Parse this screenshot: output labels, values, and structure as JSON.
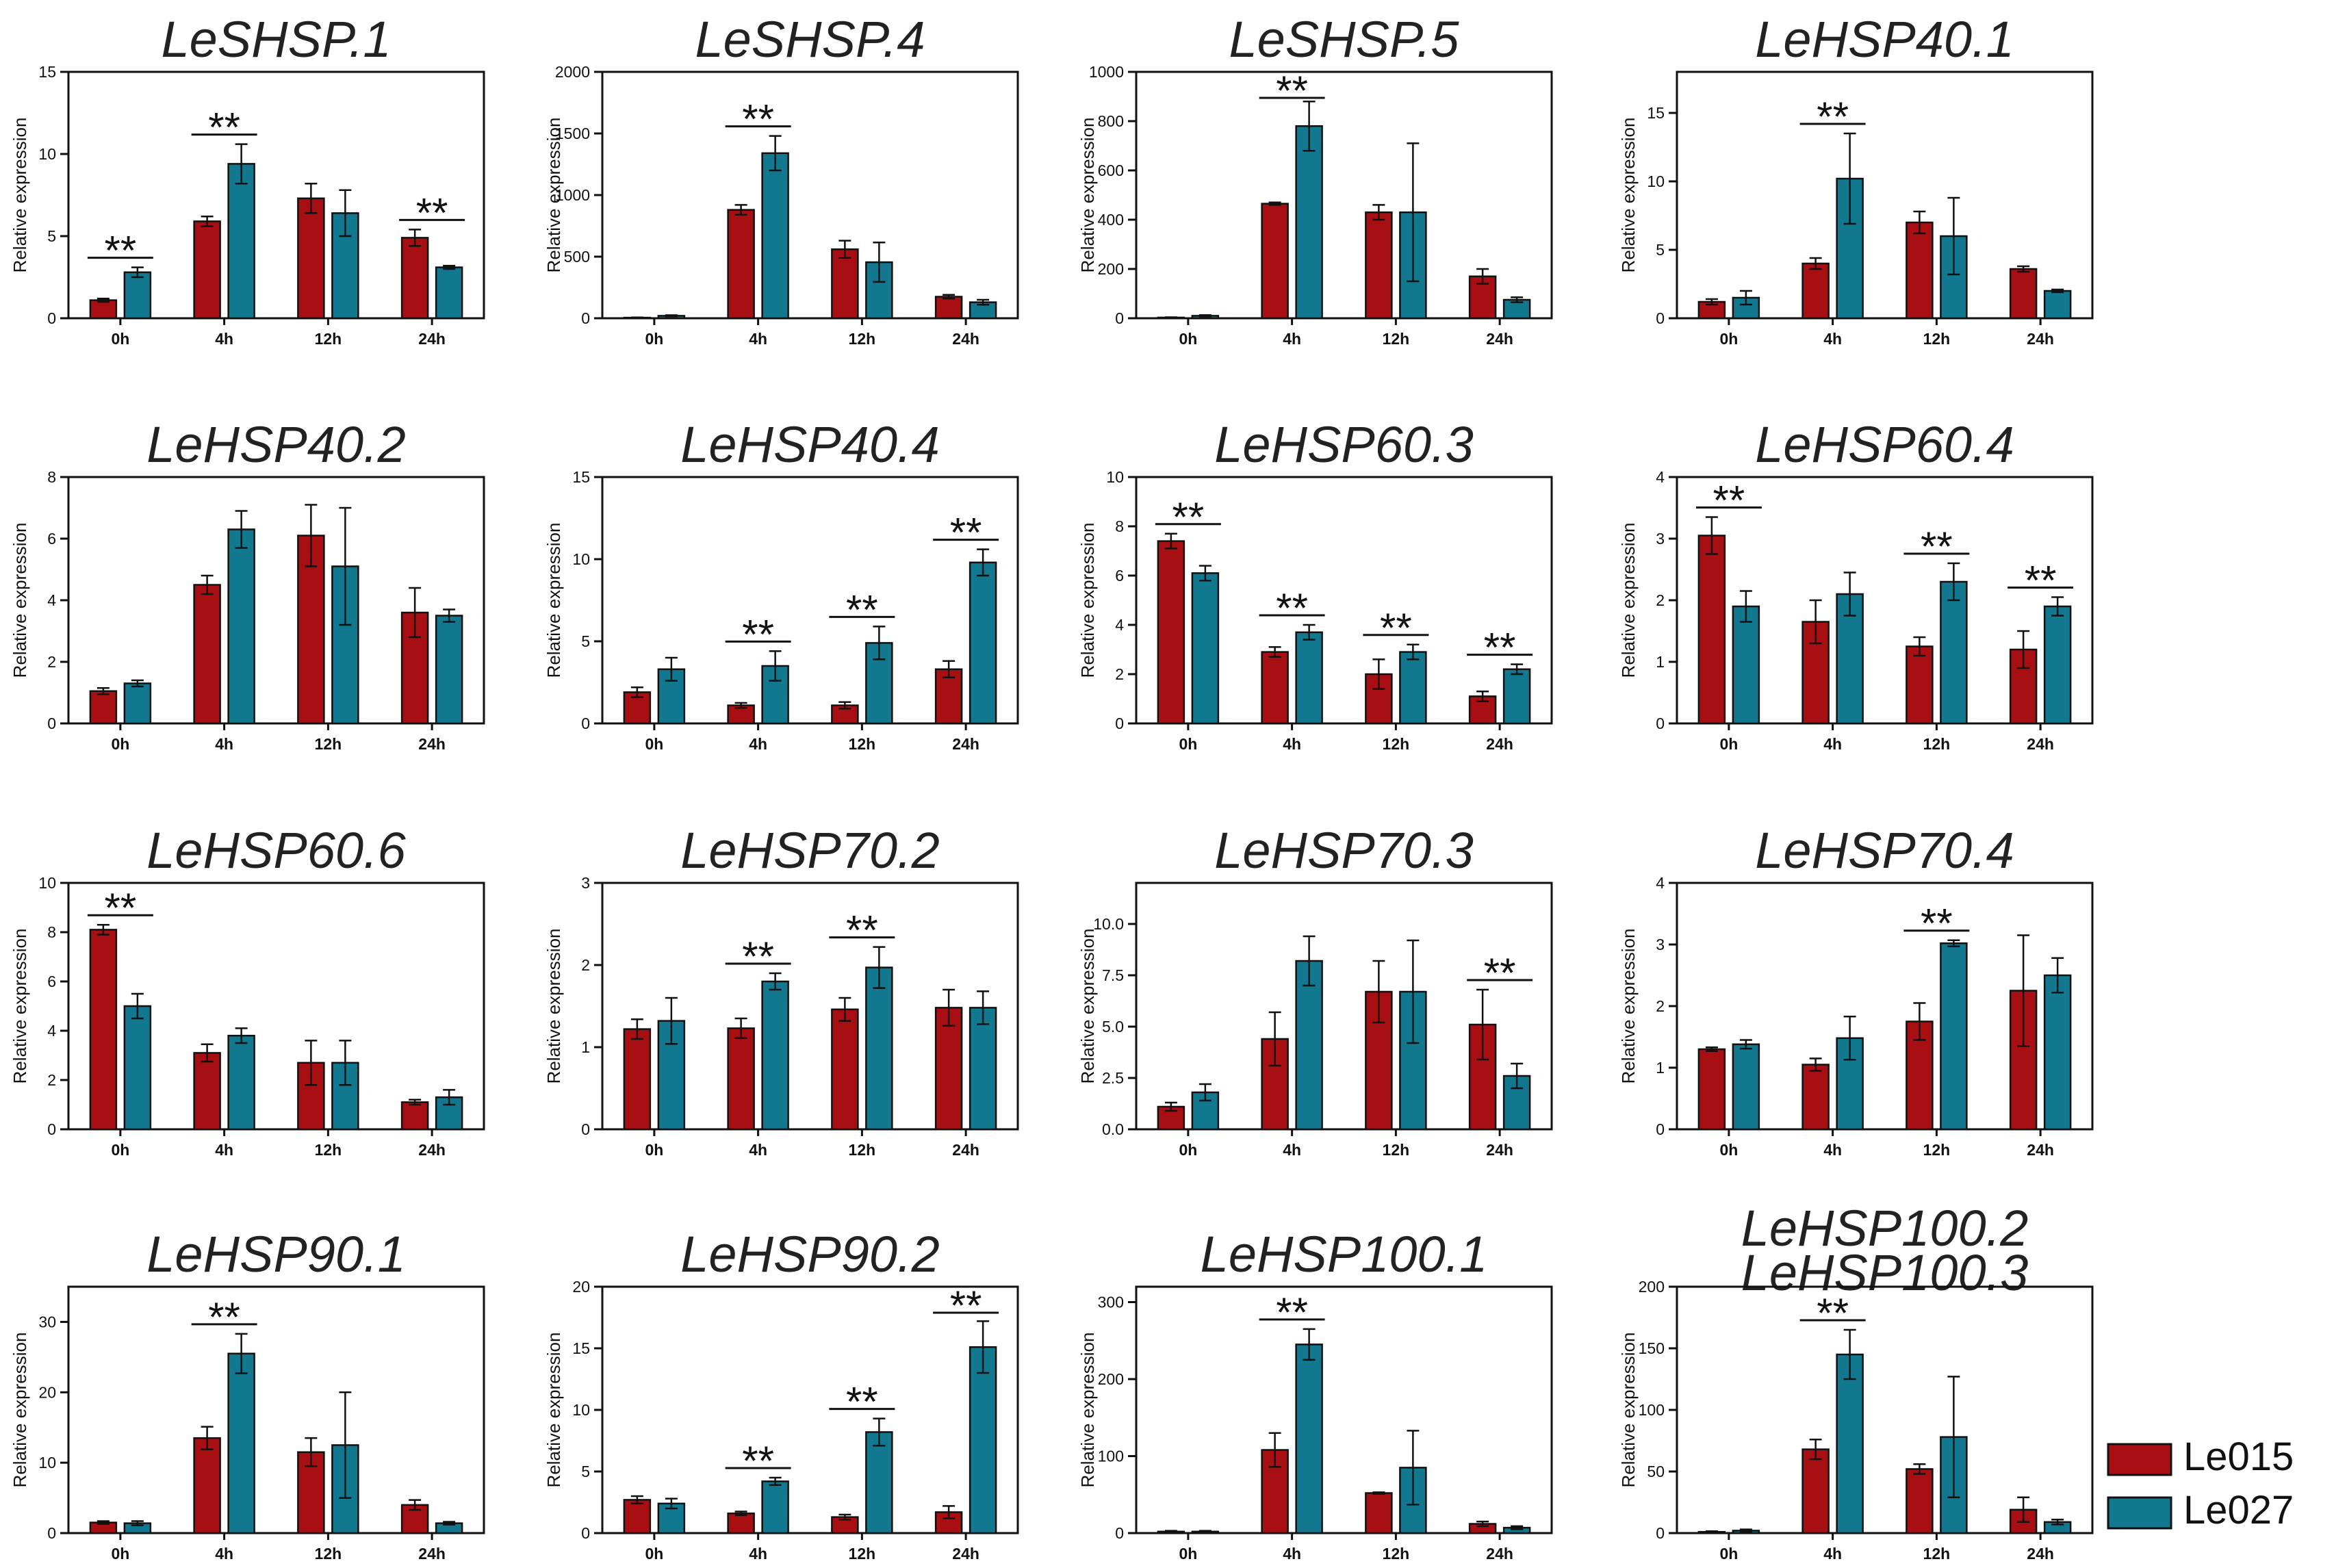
{
  "figure": {
    "legend": [
      {
        "name": "Le015",
        "color": "#a80f12"
      },
      {
        "name": "Le027",
        "color": "#11788f"
      }
    ],
    "ylabel": "Relative expression",
    "categories": [
      "0h",
      "4h",
      "12h",
      "24h"
    ]
  },
  "chart_data": [
    {
      "type": "bar",
      "title": "LeSHSP.1",
      "ylabel": "Relative expression",
      "categories": [
        "0h",
        "4h",
        "12h",
        "24h"
      ],
      "ylim": [
        0,
        15
      ],
      "yticks": [
        0,
        5,
        10,
        15
      ],
      "yticklabels": [
        "0",
        "5",
        "10",
        "15"
      ],
      "series": [
        {
          "name": "Le015",
          "values": [
            1.1,
            5.9,
            7.3,
            4.9
          ],
          "errors": [
            0.1,
            0.3,
            0.9,
            0.5
          ]
        },
        {
          "name": "Le027",
          "values": [
            2.8,
            9.4,
            6.4,
            3.1
          ],
          "errors": [
            0.3,
            1.2,
            1.4,
            0.1
          ]
        }
      ],
      "significance": [
        {
          "category": "0h",
          "label": "**"
        },
        {
          "category": "4h",
          "label": "**"
        },
        {
          "category": "24h",
          "label": "**"
        }
      ]
    },
    {
      "type": "bar",
      "title": "LeSHSP.4",
      "ylabel": "Relative expression",
      "categories": [
        "0h",
        "4h",
        "12h",
        "24h"
      ],
      "ylim": [
        0,
        2000
      ],
      "yticks": [
        0,
        500,
        1000,
        1500,
        2000
      ],
      "yticklabels": [
        "0",
        "500",
        "1000",
        "1500",
        "2000"
      ],
      "series": [
        {
          "name": "Le015",
          "values": [
            5,
            880,
            560,
            175
          ],
          "errors": [
            2,
            40,
            70,
            15
          ]
        },
        {
          "name": "Le027",
          "values": [
            20,
            1340,
            455,
            130
          ],
          "errors": [
            5,
            140,
            160,
            20
          ]
        }
      ],
      "significance": [
        {
          "category": "4h",
          "label": "**"
        }
      ]
    },
    {
      "type": "bar",
      "title": "LeSHSP.5",
      "ylabel": "Relative expression",
      "categories": [
        "0h",
        "4h",
        "12h",
        "24h"
      ],
      "ylim": [
        0,
        1000
      ],
      "yticks": [
        0,
        200,
        400,
        600,
        800,
        1000
      ],
      "yticklabels": [
        "0",
        "200",
        "400",
        "600",
        "800",
        "1000"
      ],
      "series": [
        {
          "name": "Le015",
          "values": [
            3,
            465,
            430,
            170
          ],
          "errors": [
            1,
            5,
            30,
            30
          ]
        },
        {
          "name": "Le027",
          "values": [
            10,
            780,
            430,
            75
          ],
          "errors": [
            3,
            100,
            280,
            10
          ]
        }
      ],
      "significance": [
        {
          "category": "4h",
          "label": "**"
        }
      ]
    },
    {
      "type": "bar",
      "title": "LeHSP40.1",
      "ylabel": "Relative expression",
      "categories": [
        "0h",
        "4h",
        "12h",
        "24h"
      ],
      "ylim": [
        0,
        18
      ],
      "yticks": [
        0,
        5,
        10,
        15
      ],
      "yticklabels": [
        "0",
        "5",
        "10",
        "15"
      ],
      "series": [
        {
          "name": "Le015",
          "values": [
            1.2,
            4.0,
            7.0,
            3.6
          ],
          "errors": [
            0.2,
            0.4,
            0.8,
            0.2
          ]
        },
        {
          "name": "Le027",
          "values": [
            1.5,
            10.2,
            6.0,
            2.0
          ],
          "errors": [
            0.5,
            3.3,
            2.8,
            0.1
          ]
        }
      ],
      "significance": [
        {
          "category": "4h",
          "label": "**"
        }
      ]
    },
    {
      "type": "bar",
      "title": "LeHSP40.2",
      "ylabel": "Relative expression",
      "categories": [
        "0h",
        "4h",
        "12h",
        "24h"
      ],
      "ylim": [
        0,
        8
      ],
      "yticks": [
        0,
        2,
        4,
        6,
        8
      ],
      "yticklabels": [
        "0",
        "2",
        "4",
        "6",
        "8"
      ],
      "series": [
        {
          "name": "Le015",
          "values": [
            1.05,
            4.5,
            6.1,
            3.6
          ],
          "errors": [
            0.1,
            0.3,
            1.0,
            0.8
          ]
        },
        {
          "name": "Le027",
          "values": [
            1.3,
            6.3,
            5.1,
            3.5
          ],
          "errors": [
            0.1,
            0.6,
            1.9,
            0.2
          ]
        }
      ],
      "significance": []
    },
    {
      "type": "bar",
      "title": "LeHSP40.4",
      "ylabel": "Relative expression",
      "categories": [
        "0h",
        "4h",
        "12h",
        "24h"
      ],
      "ylim": [
        0,
        15
      ],
      "yticks": [
        0,
        5,
        10,
        15
      ],
      "yticklabels": [
        "0",
        "5",
        "10",
        "15"
      ],
      "series": [
        {
          "name": "Le015",
          "values": [
            1.9,
            1.1,
            1.1,
            3.3
          ],
          "errors": [
            0.3,
            0.15,
            0.2,
            0.5
          ]
        },
        {
          "name": "Le027",
          "values": [
            3.3,
            3.5,
            4.9,
            9.8
          ],
          "errors": [
            0.7,
            0.9,
            1.0,
            0.8
          ]
        }
      ],
      "significance": [
        {
          "category": "4h",
          "label": "**"
        },
        {
          "category": "12h",
          "label": "**"
        },
        {
          "category": "24h",
          "label": "**"
        }
      ]
    },
    {
      "type": "bar",
      "title": "LeHSP60.3",
      "ylabel": "Relative expression",
      "categories": [
        "0h",
        "4h",
        "12h",
        "24h"
      ],
      "ylim": [
        0,
        10
      ],
      "yticks": [
        0,
        2,
        4,
        6,
        8,
        10
      ],
      "yticklabels": [
        "0",
        "2",
        "4",
        "6",
        "8",
        "10"
      ],
      "series": [
        {
          "name": "Le015",
          "values": [
            7.4,
            2.9,
            2.0,
            1.1
          ],
          "errors": [
            0.3,
            0.2,
            0.6,
            0.2
          ]
        },
        {
          "name": "Le027",
          "values": [
            6.1,
            3.7,
            2.9,
            2.2
          ],
          "errors": [
            0.3,
            0.3,
            0.3,
            0.2
          ]
        }
      ],
      "significance": [
        {
          "category": "0h",
          "label": "**"
        },
        {
          "category": "4h",
          "label": "**"
        },
        {
          "category": "12h",
          "label": "**"
        },
        {
          "category": "24h",
          "label": "**"
        }
      ]
    },
    {
      "type": "bar",
      "title": "LeHSP60.4",
      "ylabel": "Relative expression",
      "categories": [
        "0h",
        "4h",
        "12h",
        "24h"
      ],
      "ylim": [
        0,
        4
      ],
      "yticks": [
        0,
        1,
        2,
        3,
        4
      ],
      "yticklabels": [
        "0",
        "1",
        "2",
        "3",
        "4"
      ],
      "series": [
        {
          "name": "Le015",
          "values": [
            3.05,
            1.65,
            1.25,
            1.2
          ],
          "errors": [
            0.3,
            0.35,
            0.15,
            0.3
          ]
        },
        {
          "name": "Le027",
          "values": [
            1.9,
            2.1,
            2.3,
            1.9
          ],
          "errors": [
            0.25,
            0.35,
            0.3,
            0.15
          ]
        }
      ],
      "significance": [
        {
          "category": "0h",
          "label": "**"
        },
        {
          "category": "12h",
          "label": "**"
        },
        {
          "category": "24h",
          "label": "**"
        }
      ]
    },
    {
      "type": "bar",
      "title": "LeHSP60.6",
      "ylabel": "Relative expression",
      "categories": [
        "0h",
        "4h",
        "12h",
        "24h"
      ],
      "ylim": [
        0,
        10
      ],
      "yticks": [
        0,
        2,
        4,
        6,
        8,
        10
      ],
      "yticklabels": [
        "0",
        "2",
        "4",
        "6",
        "8",
        "10"
      ],
      "series": [
        {
          "name": "Le015",
          "values": [
            8.1,
            3.1,
            2.7,
            1.1
          ],
          "errors": [
            0.2,
            0.35,
            0.9,
            0.1
          ]
        },
        {
          "name": "Le027",
          "values": [
            5.0,
            3.8,
            2.7,
            1.3
          ],
          "errors": [
            0.5,
            0.3,
            0.9,
            0.3
          ]
        }
      ],
      "significance": [
        {
          "category": "0h",
          "label": "**"
        }
      ]
    },
    {
      "type": "bar",
      "title": "LeHSP70.2",
      "ylabel": "Relative expression",
      "categories": [
        "0h",
        "4h",
        "12h",
        "24h"
      ],
      "ylim": [
        0,
        3
      ],
      "yticks": [
        0,
        1,
        2,
        3
      ],
      "yticklabels": [
        "0",
        "1",
        "2",
        "3"
      ],
      "series": [
        {
          "name": "Le015",
          "values": [
            1.22,
            1.23,
            1.46,
            1.48
          ],
          "errors": [
            0.12,
            0.12,
            0.14,
            0.22
          ]
        },
        {
          "name": "Le027",
          "values": [
            1.32,
            1.8,
            1.97,
            1.48
          ],
          "errors": [
            0.28,
            0.1,
            0.25,
            0.2
          ]
        }
      ],
      "significance": [
        {
          "category": "4h",
          "label": "**"
        },
        {
          "category": "12h",
          "label": "**"
        }
      ]
    },
    {
      "type": "bar",
      "title": "LeHSP70.3",
      "ylabel": "Relative expression",
      "categories": [
        "0h",
        "4h",
        "12h",
        "24h"
      ],
      "ylim": [
        0,
        12
      ],
      "yticks": [
        0,
        2.5,
        5,
        7.5,
        10
      ],
      "yticklabels": [
        "0.0",
        "2.5",
        "5.0",
        "7.5",
        "10.0"
      ],
      "series": [
        {
          "name": "Le015",
          "values": [
            1.1,
            4.4,
            6.7,
            5.1
          ],
          "errors": [
            0.2,
            1.3,
            1.5,
            1.7
          ]
        },
        {
          "name": "Le027",
          "values": [
            1.8,
            8.2,
            6.7,
            2.6
          ],
          "errors": [
            0.4,
            1.2,
            2.5,
            0.6
          ]
        }
      ],
      "significance": [
        {
          "category": "24h",
          "label": "**"
        }
      ]
    },
    {
      "type": "bar",
      "title": "LeHSP70.4",
      "ylabel": "Relative expression",
      "categories": [
        "0h",
        "4h",
        "12h",
        "24h"
      ],
      "ylim": [
        0,
        4
      ],
      "yticks": [
        0,
        1,
        2,
        3,
        4
      ],
      "yticklabels": [
        "0",
        "1",
        "2",
        "3",
        "4"
      ],
      "series": [
        {
          "name": "Le015",
          "values": [
            1.3,
            1.05,
            1.75,
            2.25
          ],
          "errors": [
            0.03,
            0.1,
            0.3,
            0.9
          ]
        },
        {
          "name": "Le027",
          "values": [
            1.38,
            1.48,
            3.02,
            2.5
          ],
          "errors": [
            0.07,
            0.35,
            0.05,
            0.28
          ]
        }
      ],
      "significance": [
        {
          "category": "12h",
          "label": "**"
        }
      ]
    },
    {
      "type": "bar",
      "title": "LeHSP90.1",
      "ylabel": "Relative expression",
      "categories": [
        "0h",
        "4h",
        "12h",
        "24h"
      ],
      "ylim": [
        0,
        35
      ],
      "yticks": [
        0,
        10,
        20,
        30
      ],
      "yticklabels": [
        "0",
        "10",
        "20",
        "30"
      ],
      "series": [
        {
          "name": "Le015",
          "values": [
            1.5,
            13.5,
            11.5,
            4.0
          ],
          "errors": [
            0.2,
            1.6,
            2.0,
            0.7
          ]
        },
        {
          "name": "Le027",
          "values": [
            1.4,
            25.5,
            12.5,
            1.4
          ],
          "errors": [
            0.3,
            2.8,
            7.5,
            0.2
          ]
        }
      ],
      "significance": [
        {
          "category": "4h",
          "label": "**"
        }
      ]
    },
    {
      "type": "bar",
      "title": "LeHSP90.2",
      "ylabel": "Relative expression",
      "categories": [
        "0h",
        "4h",
        "12h",
        "24h"
      ],
      "ylim": [
        0,
        20
      ],
      "yticks": [
        0,
        5,
        10,
        15,
        20
      ],
      "yticklabels": [
        "0",
        "5",
        "10",
        "15",
        "20"
      ],
      "series": [
        {
          "name": "Le015",
          "values": [
            2.7,
            1.6,
            1.3,
            1.7
          ],
          "errors": [
            0.3,
            0.15,
            0.2,
            0.5
          ]
        },
        {
          "name": "Le027",
          "values": [
            2.4,
            4.2,
            8.2,
            15.1
          ],
          "errors": [
            0.4,
            0.3,
            1.1,
            2.1
          ]
        }
      ],
      "significance": [
        {
          "category": "4h",
          "label": "**"
        },
        {
          "category": "12h",
          "label": "**"
        },
        {
          "category": "24h",
          "label": "**"
        }
      ]
    },
    {
      "type": "bar",
      "title": "LeHSP100.1",
      "ylabel": "Relative expression",
      "categories": [
        "0h",
        "4h",
        "12h",
        "24h"
      ],
      "ylim": [
        0,
        320
      ],
      "yticks": [
        0,
        100,
        200,
        300
      ],
      "yticklabels": [
        "0",
        "100",
        "200",
        "300"
      ],
      "series": [
        {
          "name": "Le015",
          "values": [
            2,
            108,
            52,
            12
          ],
          "errors": [
            1,
            22,
            1,
            3
          ]
        },
        {
          "name": "Le027",
          "values": [
            2,
            245,
            85,
            7
          ],
          "errors": [
            1,
            20,
            48,
            2
          ]
        }
      ],
      "significance": [
        {
          "category": "4h",
          "label": "**"
        }
      ]
    },
    {
      "type": "bar",
      "title": "LeHSP100.2",
      "subtitle": "LeHSP100.3",
      "ylabel": "Relative expression",
      "categories": [
        "0h",
        "4h",
        "12h",
        "24h"
      ],
      "ylim": [
        0,
        200
      ],
      "yticks": [
        0,
        50,
        100,
        150,
        200
      ],
      "yticklabels": [
        "0",
        "50",
        "100",
        "150",
        "200"
      ],
      "series": [
        {
          "name": "Le015",
          "values": [
            1,
            68,
            52,
            19
          ],
          "errors": [
            0.5,
            8,
            4,
            10
          ]
        },
        {
          "name": "Le027",
          "values": [
            2,
            145,
            78,
            9
          ],
          "errors": [
            1,
            20,
            49,
            2
          ]
        }
      ],
      "significance": [
        {
          "category": "4h",
          "label": "**"
        }
      ]
    }
  ]
}
